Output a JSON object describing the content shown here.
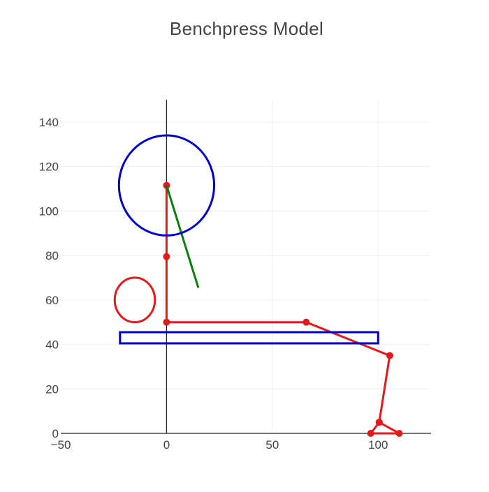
{
  "chart_data": {
    "type": "scatter",
    "title": "Benchpress Model",
    "xlabel": "",
    "ylabel": "",
    "xlim": [
      -50,
      125
    ],
    "ylim": [
      0,
      150
    ],
    "x_ticks": [
      {
        "value": -50,
        "label": "−50"
      },
      {
        "value": 0,
        "label": "0"
      },
      {
        "value": 50,
        "label": "50"
      },
      {
        "value": 100,
        "label": "100"
      }
    ],
    "y_ticks": [
      {
        "value": 0,
        "label": "0"
      },
      {
        "value": 20,
        "label": "20"
      },
      {
        "value": 40,
        "label": "40"
      },
      {
        "value": 60,
        "label": "60"
      },
      {
        "value": 80,
        "label": "80"
      },
      {
        "value": 100,
        "label": "100"
      },
      {
        "value": 120,
        "label": "120"
      },
      {
        "value": 140,
        "label": "140"
      }
    ],
    "grid": true,
    "legend": "none",
    "series": [
      {
        "kind": "polyline",
        "color": "#e31a1c",
        "markers": true,
        "points": [
          [
            0,
            111.5
          ],
          [
            0,
            79.5
          ],
          [
            0,
            50
          ],
          [
            66,
            50
          ],
          [
            105.5,
            35
          ],
          [
            100.5,
            5
          ],
          [
            96.5,
            0
          ],
          [
            110,
            0
          ],
          [
            100.5,
            5
          ]
        ]
      },
      {
        "kind": "line",
        "color": "#0a7d0a",
        "markers": false,
        "points": [
          [
            0,
            111.5
          ],
          [
            15,
            65.5
          ]
        ]
      },
      {
        "kind": "circle",
        "color": "#0000cc",
        "center": [
          0,
          111.5
        ],
        "radius_x": 22.5,
        "radius_y": 22.5
      },
      {
        "kind": "circle",
        "color": "#e31a1c",
        "center": [
          -15,
          60
        ],
        "radius_x": 9.5,
        "radius_y": 10
      },
      {
        "kind": "rect",
        "color": "#0000cc",
        "x0": -22,
        "x1": 100,
        "y0": 40.5,
        "y1": 45.5
      }
    ]
  }
}
